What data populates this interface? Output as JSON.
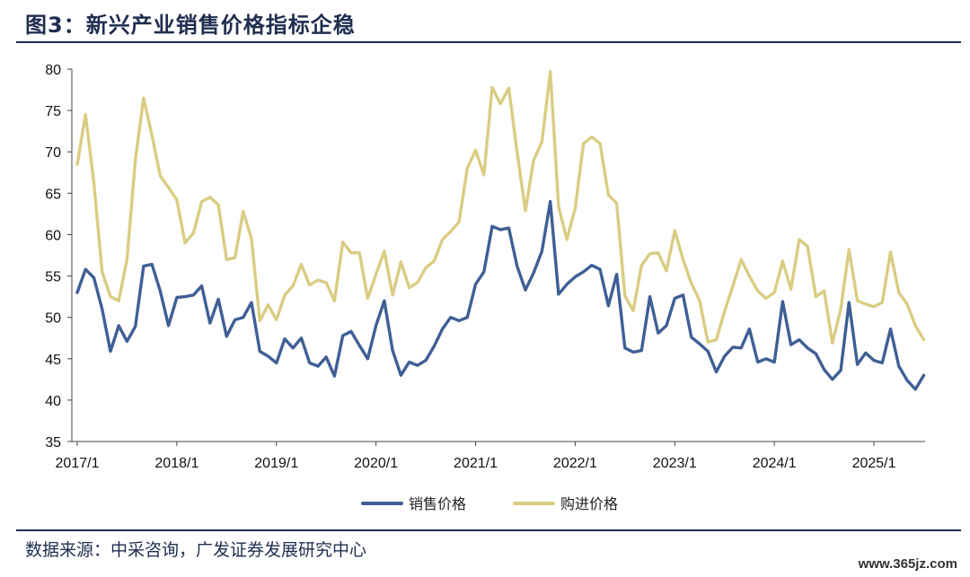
{
  "title": "图3：新兴产业销售价格指标企稳",
  "source": "数据来源：中采咨询，广发证券发展研究中心",
  "watermark": "www.365jz.com",
  "chart_data": {
    "type": "line",
    "title": "",
    "xlabel": "",
    "ylabel": "",
    "ylim": [
      35,
      80
    ],
    "yticks": [
      35,
      40,
      45,
      50,
      55,
      60,
      65,
      70,
      75,
      80
    ],
    "x_tick_labels": [
      "2017/1",
      "2018/1",
      "2019/1",
      "2020/1",
      "2021/1",
      "2022/1",
      "2023/1",
      "2024/1",
      "2025/1"
    ],
    "x_start": "2017/1",
    "grid": false,
    "legend": "bottom",
    "series": [
      {
        "name": "销售价格",
        "color": "#3f5f95",
        "values": [
          53.0,
          55.8,
          54.8,
          51.0,
          45.9,
          49.0,
          47.1,
          48.9,
          56.2,
          56.4,
          53.2,
          49.0,
          52.4,
          52.5,
          52.7,
          53.8,
          49.3,
          52.2,
          47.7,
          49.7,
          50.0,
          51.8,
          45.9,
          45.3,
          44.5,
          47.4,
          46.3,
          47.5,
          44.5,
          44.1,
          45.2,
          42.9,
          47.8,
          48.3,
          46.6,
          45.0,
          49.0,
          52.0,
          46.0,
          43.0,
          44.6,
          44.2,
          44.8,
          46.5,
          48.6,
          50.0,
          49.6,
          50.0,
          54.0,
          55.5,
          61.0,
          60.6,
          60.8,
          56.2,
          53.3,
          55.4,
          58.0,
          64.0,
          52.8,
          54.0,
          54.9,
          55.5,
          56.3,
          55.8,
          51.4,
          55.2,
          46.3,
          45.8,
          46.0,
          52.5,
          48.1,
          49.0,
          52.3,
          52.7,
          47.6,
          46.8,
          45.9,
          43.4,
          45.3,
          46.4,
          46.3,
          48.6,
          44.6,
          45.0,
          44.6,
          51.9,
          46.7,
          47.3,
          46.3,
          45.6,
          43.7,
          42.5,
          43.6,
          51.8,
          44.3,
          45.7,
          44.8,
          44.5,
          48.6,
          44.1,
          42.4,
          41.3,
          43.0
        ]
      },
      {
        "name": "购进价格",
        "color": "#d9cd83",
        "values": [
          68.5,
          74.5,
          66.3,
          55.5,
          52.5,
          52.0,
          57.0,
          69.0,
          76.5,
          72.0,
          67.1,
          65.7,
          64.2,
          59.0,
          60.2,
          64.0,
          64.5,
          63.6,
          57.0,
          57.2,
          62.8,
          59.5,
          49.6,
          51.5,
          49.7,
          52.7,
          53.8,
          56.4,
          53.9,
          54.5,
          54.2,
          52.0,
          59.1,
          57.8,
          57.8,
          52.3,
          55.2,
          58.0,
          52.7,
          56.7,
          53.6,
          54.2,
          56.0,
          56.8,
          59.4,
          60.4,
          61.5,
          68.0,
          70.2,
          67.2,
          77.8,
          75.8,
          77.7,
          70.0,
          62.9,
          69.0,
          71.2,
          79.7,
          63.4,
          59.4,
          63.2,
          71.0,
          71.8,
          71.0,
          64.8,
          63.8,
          52.6,
          50.8,
          56.3,
          57.7,
          57.8,
          55.6,
          60.5,
          57.0,
          54.1,
          52.0,
          47.0,
          47.3,
          50.7,
          53.8,
          57.0,
          55.0,
          53.2,
          52.3,
          53.0,
          56.8,
          53.4,
          59.4,
          58.6,
          52.5,
          53.2,
          46.9,
          51.0,
          58.2,
          52.0,
          51.6,
          51.3,
          51.8,
          57.9,
          53.0,
          51.6,
          49.0,
          47.3
        ]
      }
    ]
  }
}
